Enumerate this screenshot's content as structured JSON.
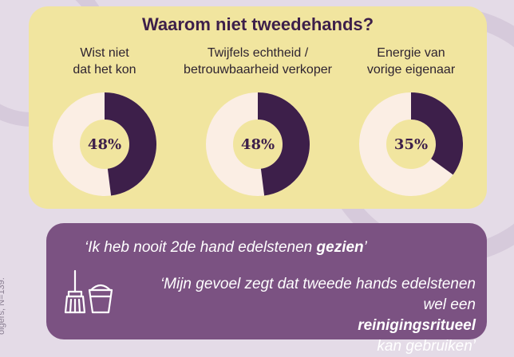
{
  "title": "Waarom niet tweedehands?",
  "side_note": "olgers, N=139.",
  "chart_data": [
    {
      "type": "pie",
      "label_line1": "Wist niet",
      "label_line2": "dat het kon",
      "value": 48,
      "display": "48%"
    },
    {
      "type": "pie",
      "label_line1": "Twijfels echtheid /",
      "label_line2": "betrouwbaarheid verkoper",
      "value": 48,
      "display": "48%"
    },
    {
      "type": "pie",
      "label_line1": "Energie van",
      "label_line2": "vorige eigenaar",
      "value": 35,
      "display": "35%"
    }
  ],
  "colors": {
    "filled": "#3d1f4a",
    "remaining": "#fbeee4",
    "panel_top": "#f1e59f",
    "panel_bottom": "#7b5282"
  },
  "quotes": {
    "q1_pre": "‘Ik heb nooit 2de hand edelstenen ",
    "q1_bold": "gezien",
    "q1_post": "’",
    "q2_line1": "‘Mijn gevoel zegt dat tweede hands edelstenen",
    "q2_pre": "wel een ",
    "q2_bold": "reinigingsritueel",
    "q2_post": " kan gebruiken’"
  },
  "icon": "broom-bucket-icon"
}
